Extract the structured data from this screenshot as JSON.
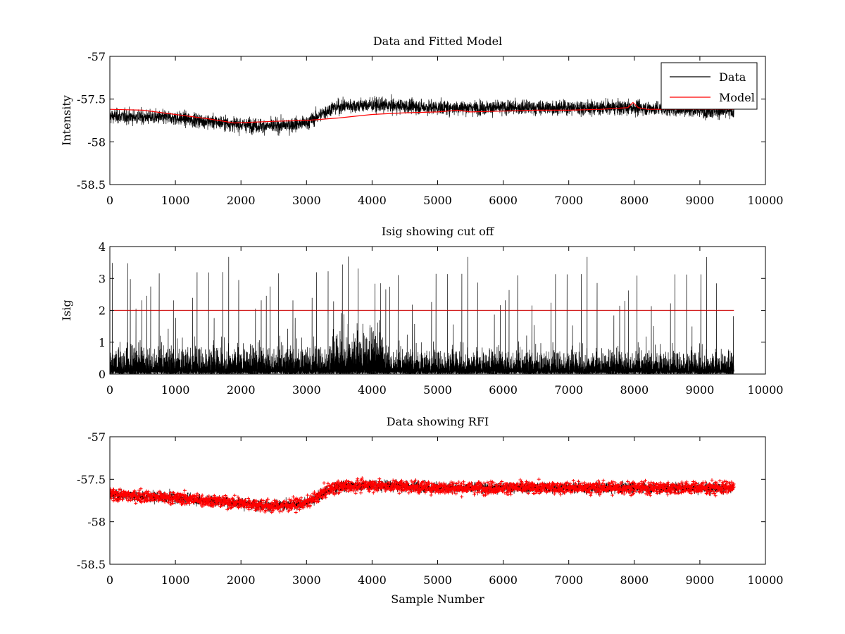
{
  "chart_data": [
    {
      "type": "line",
      "title": "Data and Fitted Model",
      "xlabel": "",
      "ylabel": "Intensity",
      "xlim": [
        0,
        10000
      ],
      "ylim": [
        -58.5,
        -57
      ],
      "xticks": [
        0,
        1000,
        2000,
        3000,
        4000,
        5000,
        6000,
        7000,
        8000,
        9000,
        10000
      ],
      "yticks": [
        -57,
        -57.5,
        -58,
        -58.5
      ],
      "xtick_labels": [
        "0",
        "1000",
        "2000",
        "3000",
        "4000",
        "5000",
        "6000",
        "7000",
        "8000",
        "9000",
        "10000"
      ],
      "ytick_labels": [
        "-57",
        "-57.5",
        "-58",
        "-58.5"
      ],
      "legend": {
        "location": "top-right",
        "entries": [
          "Data",
          "Model"
        ]
      },
      "series": [
        {
          "name": "Data",
          "color": "#000000",
          "style": "noisy-line",
          "x_range": [
            0,
            9520
          ],
          "baseline_x": [
            0,
            1000,
            2000,
            2500,
            3000,
            3400,
            3600,
            4000,
            5000,
            6000,
            7000,
            8000,
            9000,
            9520
          ],
          "baseline_y": [
            -57.7,
            -57.72,
            -57.8,
            -57.82,
            -57.78,
            -57.6,
            -57.58,
            -57.57,
            -57.6,
            -57.6,
            -57.6,
            -57.6,
            -57.63,
            -57.65
          ],
          "noise_amplitude": 0.18
        },
        {
          "name": "Model",
          "color": "#ff0000",
          "style": "line",
          "x": [
            0,
            500,
            1000,
            1500,
            1900,
            2200,
            2500,
            3000,
            3500,
            4000,
            4500,
            5000,
            5300,
            5500,
            6000,
            6500,
            7000,
            7500,
            7900,
            7980,
            8060,
            8200,
            8600,
            9000,
            9520
          ],
          "y": [
            -57.62,
            -57.63,
            -57.68,
            -57.73,
            -57.78,
            -57.77,
            -57.76,
            -57.75,
            -57.72,
            -57.68,
            -57.66,
            -57.65,
            -57.63,
            -57.65,
            -57.64,
            -57.63,
            -57.63,
            -57.62,
            -57.6,
            -57.54,
            -57.6,
            -57.62,
            -57.62,
            -57.62,
            -57.62
          ]
        }
      ]
    },
    {
      "type": "line",
      "title": "Isig showing cut off",
      "xlabel": "",
      "ylabel": "Isig",
      "xlim": [
        0,
        10000
      ],
      "ylim": [
        0,
        4
      ],
      "xticks": [
        0,
        1000,
        2000,
        3000,
        4000,
        5000,
        6000,
        7000,
        8000,
        9000,
        10000
      ],
      "yticks": [
        0,
        1,
        2,
        3,
        4
      ],
      "xtick_labels": [
        "0",
        "1000",
        "2000",
        "3000",
        "4000",
        "5000",
        "6000",
        "7000",
        "8000",
        "9000",
        "10000"
      ],
      "ytick_labels": [
        "0",
        "1",
        "2",
        "3",
        "4"
      ],
      "series": [
        {
          "name": "Isig",
          "color": "#000000",
          "style": "spiky-line",
          "x_range": [
            0,
            9520
          ],
          "typical_peak_x": [
            0,
            3300,
            3500,
            4100,
            4300,
            9520
          ],
          "typical_peak_y": [
            1.6,
            1.6,
            2.6,
            2.6,
            1.4,
            1.3
          ],
          "max_value": 3.7
        },
        {
          "name": "Cut off",
          "color": "#cc0000",
          "style": "line",
          "x": [
            0,
            9520
          ],
          "y": [
            2,
            2
          ]
        }
      ]
    },
    {
      "type": "scatter",
      "title": "Data showing RFI",
      "xlabel": "Sample Number",
      "ylabel": "",
      "xlim": [
        0,
        10000
      ],
      "ylim": [
        -58.5,
        -57
      ],
      "xticks": [
        0,
        1000,
        2000,
        3000,
        4000,
        5000,
        6000,
        7000,
        8000,
        9000,
        10000
      ],
      "yticks": [
        -57,
        -57.5,
        -58,
        -58.5
      ],
      "xtick_labels": [
        "0",
        "1000",
        "2000",
        "3000",
        "4000",
        "5000",
        "6000",
        "7000",
        "8000",
        "9000",
        "10000"
      ],
      "ytick_labels": [
        "-57",
        "-57.5",
        "-58",
        "-58.5"
      ],
      "series": [
        {
          "name": "Data",
          "color": "#000000",
          "style": "noisy-line",
          "x_range": [
            0,
            9520
          ],
          "baseline_x": [
            0,
            1000,
            2000,
            2500,
            3000,
            3400,
            3600,
            4000,
            5000,
            6000,
            7000,
            8000,
            9000,
            9520
          ],
          "baseline_y": [
            -57.68,
            -57.72,
            -57.78,
            -57.82,
            -57.78,
            -57.6,
            -57.58,
            -57.57,
            -57.6,
            -57.6,
            -57.6,
            -57.6,
            -57.6,
            -57.6
          ],
          "noise_amplitude": 0.13
        },
        {
          "name": "RFI",
          "color": "#ff0000",
          "style": "markers",
          "marker": "+"
        }
      ]
    }
  ]
}
